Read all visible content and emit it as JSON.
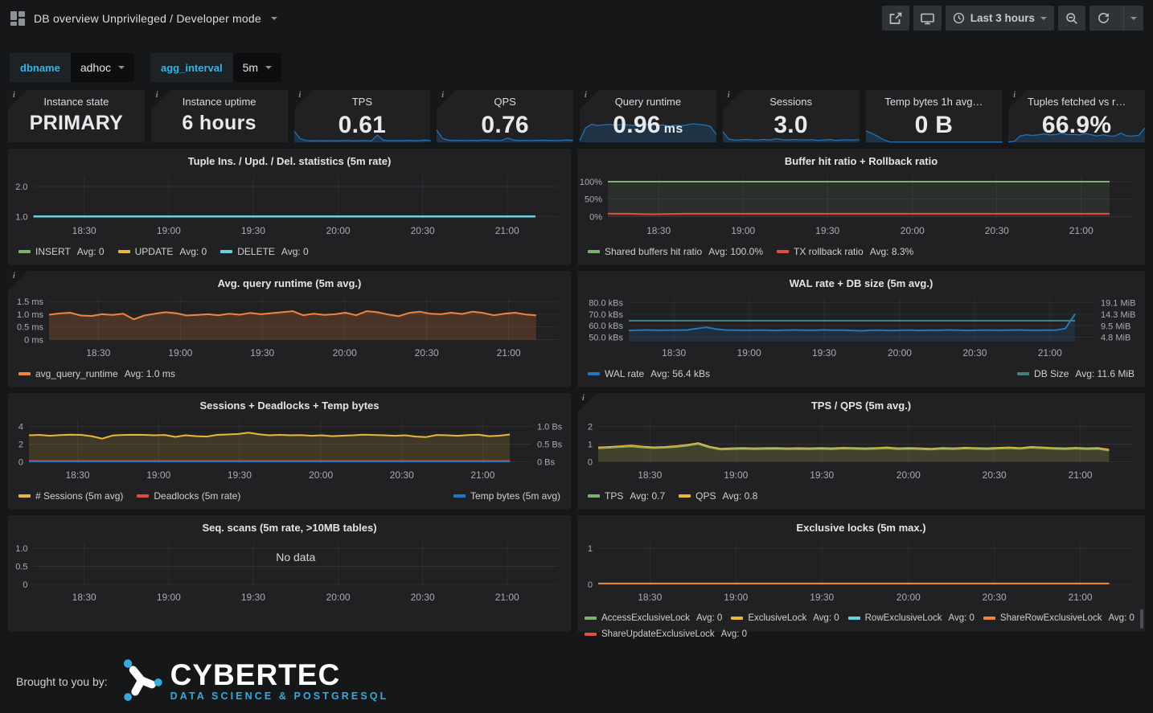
{
  "navbar": {
    "title": "DB overview Unprivileged / Developer mode",
    "time_range": "Last 3 hours"
  },
  "variables": [
    {
      "label": "dbname",
      "value": "adhoc"
    },
    {
      "label": "agg_interval",
      "value": "5m"
    }
  ],
  "stats": [
    {
      "title": "Instance state",
      "value": "PRIMARY",
      "info": true
    },
    {
      "title": "Instance uptime",
      "value": "6 hours",
      "info": true
    },
    {
      "title": "TPS",
      "value": "0.61",
      "info": true,
      "spark_h": 22,
      "spark": [
        0.62,
        0.2,
        0.1,
        0.08,
        0.09,
        0.08,
        0.09,
        0.08,
        0.09,
        0.1,
        0.08,
        0.09,
        0.1,
        0.08,
        0.4,
        0.12,
        0.09,
        0.1,
        0.09,
        0.11,
        0.09,
        0.1,
        0.12,
        0.1
      ]
    },
    {
      "title": "QPS",
      "value": "0.76",
      "info": true,
      "spark_h": 22,
      "spark": [
        0.7,
        0.22,
        0.12,
        0.1,
        0.11,
        0.1,
        0.11,
        0.1,
        0.13,
        0.11,
        0.1,
        0.11,
        0.24,
        0.12,
        0.1,
        0.11,
        0.1,
        0.11,
        0.12,
        0.11,
        0.1,
        0.11,
        0.13,
        0.11
      ]
    },
    {
      "title": "Query runtime",
      "value": "0.96",
      "unit": "ms",
      "info": true,
      "spark_h": 36,
      "spark": [
        0.06,
        0.5,
        0.62,
        0.58,
        0.6,
        0.62,
        0.59,
        0.61,
        0.6,
        0.58,
        0.61,
        0.63,
        0.6,
        0.58,
        0.6,
        0.56,
        0.59,
        0.57,
        0.6,
        0.64,
        0.62,
        0.6,
        0.55,
        0.28
      ]
    },
    {
      "title": "Sessions",
      "value": "3.0",
      "info": true,
      "spark_h": 22,
      "spark": [
        0.6,
        0.18,
        0.12,
        0.14,
        0.16,
        0.13,
        0.14,
        0.16,
        0.13,
        0.2,
        0.15,
        0.13,
        0.16,
        0.14,
        0.13,
        0.15,
        0.11,
        0.13,
        0.16,
        0.11,
        0.13,
        0.14,
        0.13,
        0.15
      ]
    },
    {
      "title": "Temp bytes 1h avg…",
      "value": "0 B",
      "info": false,
      "spark_h": 26,
      "spark": [
        0.55,
        0.42,
        0.28,
        0.12,
        0.02,
        0.01,
        0.01,
        0.01,
        0.01,
        0.01,
        0.01,
        0.01,
        0.01,
        0.01,
        0.01,
        0.01,
        0.01,
        0.01,
        0.01,
        0.01,
        0.01,
        0.01,
        0.01,
        0.01
      ]
    },
    {
      "title": "Tuples fetched vs r…",
      "value": "66.9%",
      "info": true,
      "spark_h": 26,
      "spark": [
        0.02,
        0.04,
        0.3,
        0.36,
        0.33,
        0.35,
        0.4,
        0.35,
        0.37,
        0.44,
        0.36,
        0.38,
        0.35,
        0.42,
        0.36,
        0.3,
        0.36,
        0.3,
        0.3,
        0.44,
        0.3,
        0.3,
        0.34,
        0.68
      ]
    }
  ],
  "chart_data": [
    {
      "type": "line",
      "title": "Tuple Ins. / Upd. / Del. statistics (5m rate)",
      "info": false,
      "x_ticks": [
        "18:30",
        "19:00",
        "19:30",
        "20:00",
        "20:30",
        "21:00"
      ],
      "ylim": [
        0.9,
        2.35
      ],
      "y_ticks": [
        {
          "label": "2.0",
          "v": 2.0
        },
        {
          "label": "1.0",
          "v": 1.0
        }
      ],
      "series": [
        {
          "name": "INSERT",
          "avg": "Avg: 0",
          "color": "#7EB26D",
          "width": 2,
          "fill": 0,
          "values": [
            1,
            1
          ]
        },
        {
          "name": "UPDATE",
          "avg": "Avg: 0",
          "color": "#EAB839",
          "width": 2,
          "fill": 0,
          "values": [
            1,
            1
          ]
        },
        {
          "name": "DELETE",
          "avg": "Avg: 0",
          "color": "#6ED0E0",
          "width": 2.5,
          "fill": 0,
          "values": [
            1,
            1
          ]
        }
      ]
    },
    {
      "type": "line",
      "title": "Buffer hit ratio + Rollback ratio",
      "info": false,
      "x_ticks": [
        "18:30",
        "19:00",
        "19:30",
        "20:00",
        "20:30",
        "21:00"
      ],
      "ylim": [
        -8,
        116
      ],
      "y_ticks": [
        {
          "label": "100%",
          "v": 100
        },
        {
          "label": "50%",
          "v": 50
        },
        {
          "label": "0%",
          "v": 0
        }
      ],
      "series": [
        {
          "name": "Shared buffers hit ratio",
          "avg": "Avg: 100.0%",
          "color": "#7EB26D",
          "width": 2,
          "fill": 0.1,
          "values": [
            100,
            100
          ]
        },
        {
          "name": "TX rollback ratio",
          "avg": "Avg: 8.3%",
          "color": "#E24D42",
          "width": 2,
          "fill": 0.05,
          "values": [
            8.5,
            8.4,
            8.2,
            7.6,
            7.0,
            7.3,
            7.9,
            8.3,
            8.4,
            8.3,
            8.3,
            8.4,
            8.3,
            8.2,
            8.3,
            8.4,
            8.3,
            8.3,
            8.2,
            8.3,
            8.4,
            8.3,
            8.3,
            8.4,
            8.3,
            8.2,
            8.3,
            8.3,
            8.4,
            8.3,
            8.2,
            8.3,
            8.4,
            8.3,
            8.3,
            8.2,
            8.3,
            8.4,
            8.3,
            8.3,
            8.2,
            8.3,
            8.3,
            8.4,
            8.3,
            8.2,
            8.3
          ]
        }
      ]
    },
    {
      "type": "line",
      "title": "Avg. query runtime (5m avg.)",
      "info": true,
      "x_ticks": [
        "18:30",
        "19:00",
        "19:30",
        "20:00",
        "20:30",
        "21:00"
      ],
      "ylim": [
        -0.08,
        1.63
      ],
      "y_ticks": [
        {
          "label": "1.5 ms",
          "v": 1.5
        },
        {
          "label": "1.0 ms",
          "v": 1.0
        },
        {
          "label": "0.5 ms",
          "v": 0.5
        },
        {
          "label": "0 ms",
          "v": 0
        }
      ],
      "series": [
        {
          "name": "avg_query_runtime",
          "avg": "Avg: 1.0 ms",
          "color": "#EF843C",
          "width": 2,
          "fill": 0.2,
          "values": [
            0.98,
            1.03,
            1.06,
            0.95,
            0.93,
            1.0,
            0.97,
            1.02,
            0.8,
            0.95,
            1.02,
            1.08,
            1.04,
            0.95,
            0.97,
            1.0,
            0.96,
            1.02,
            0.98,
            1.05,
            1.0,
            1.04,
            1.08,
            1.12,
            0.96,
            1.02,
            0.97,
            1.0,
            1.06,
            0.96,
            1.12,
            1.08,
            0.99,
            0.92,
            1.05,
            1.1,
            1.02,
            1.0,
            1.06,
            1.01,
            1.1,
            1.05,
            0.96,
            1.02,
            1.06,
            0.99,
            0.96
          ]
        }
      ]
    },
    {
      "type": "line",
      "title": "WAL rate + DB size (5m avg.)",
      "info": false,
      "x_ticks": [
        "18:30",
        "19:00",
        "19:30",
        "20:00",
        "20:30",
        "21:00"
      ],
      "ylim": [
        46,
        84
      ],
      "y_ticks": [
        {
          "label": "80.0 kBs",
          "v": 80
        },
        {
          "label": "70.0 kBs",
          "v": 70
        },
        {
          "label": "60.0 kBs",
          "v": 60
        },
        {
          "label": "50.0 kBs",
          "v": 50
        }
      ],
      "right_ylim": [
        2.89,
        21.01
      ],
      "right_y_ticks": [
        {
          "label": "19.1 MiB",
          "v": 19.1
        },
        {
          "label": "14.3 MiB",
          "v": 14.3
        },
        {
          "label": "9.5 MiB",
          "v": 9.5
        },
        {
          "label": "4.8 MiB",
          "v": 4.8
        }
      ],
      "series": [
        {
          "name": "WAL rate",
          "avg": "Avg: 56.4 kBs",
          "color": "#1F78C1",
          "width": 2,
          "fill": 0.15,
          "values": [
            55.8,
            56,
            56.2,
            55.9,
            56,
            56.1,
            56.2,
            57.4,
            58.6,
            57,
            56.2,
            56,
            55.9,
            56,
            56.1,
            55.8,
            56,
            56.2,
            56,
            55.9,
            56.3,
            56,
            56.1,
            55.8,
            55.5,
            55.9,
            56,
            55.7,
            55.9,
            56.1,
            55.8,
            56,
            55.9,
            56.2,
            56,
            55.8,
            56,
            56.1,
            55.9,
            56,
            56.2,
            56,
            55.9,
            56,
            56.1,
            57.5,
            70.3
          ]
        },
        {
          "name": "DB Size",
          "avg": "Avg: 11.6 MiB",
          "color": "#447E7D",
          "width": 2,
          "fill": 0,
          "axis": "right",
          "legend": "right",
          "values": [
            11.6,
            11.6
          ]
        }
      ]
    },
    {
      "type": "line",
      "title": "Sessions + Deadlocks + Temp bytes",
      "info": false,
      "x_ticks": [
        "18:30",
        "19:00",
        "19:30",
        "20:00",
        "20:30",
        "21:00"
      ],
      "ylim": [
        -0.25,
        4.7
      ],
      "y_ticks": [
        {
          "label": "4",
          "v": 4
        },
        {
          "label": "2",
          "v": 2
        },
        {
          "label": "0",
          "v": 0
        }
      ],
      "right_ylim": [
        -0.0625,
        1.175
      ],
      "right_y_ticks": [
        {
          "label": "1.0 Bs",
          "v": 1.0
        },
        {
          "label": "0.5 Bs",
          "v": 0.5
        },
        {
          "label": "0 Bs",
          "v": 0
        }
      ],
      "series": [
        {
          "name": "# Sessions (5m avg)",
          "color": "#EAB839",
          "width": 2,
          "fill": 0.16,
          "values": [
            3.0,
            3.05,
            2.95,
            3.02,
            3.08,
            3.05,
            2.9,
            2.62,
            2.98,
            3.04,
            3.06,
            3.05,
            3.0,
            3.04,
            2.82,
            3.0,
            2.9,
            2.86,
            3.05,
            3.1,
            3.15,
            3.3,
            3.12,
            3.0,
            3.05,
            3.0,
            3.03,
            2.95,
            3.0,
            2.9,
            2.96,
            3.0,
            3.08,
            3.04,
            3.0,
            2.95,
            3.0,
            2.86,
            2.8,
            3.04,
            3.0,
            2.95,
            3.03,
            3.08,
            2.9,
            2.96,
            3.1
          ]
        },
        {
          "name": "Deadlocks (5m rate)",
          "color": "#E24D42",
          "width": 2.5,
          "fill": 0,
          "values": [
            0.04,
            0.04
          ]
        },
        {
          "name": "Temp bytes (5m avg)",
          "color": "#1F78C1",
          "width": 2,
          "fill": 0,
          "axis": "right",
          "legend": "right",
          "values": [
            0.004,
            0.004
          ]
        }
      ]
    },
    {
      "type": "line",
      "title": "TPS / QPS (5m avg.)",
      "info": true,
      "x_ticks": [
        "18:30",
        "19:00",
        "19:30",
        "20:00",
        "20:30",
        "21:00"
      ],
      "ylim": [
        -0.12,
        2.35
      ],
      "y_ticks": [
        {
          "label": "2",
          "v": 2
        },
        {
          "label": "1",
          "v": 1
        },
        {
          "label": "0",
          "v": 0
        }
      ],
      "series": [
        {
          "name": "TPS",
          "avg": "Avg: 0.7",
          "color": "#7EB26D",
          "width": 1.5,
          "fill": 0.12,
          "values": [
            0.75,
            0.78,
            0.82,
            0.86,
            0.8,
            0.76,
            0.78,
            0.83,
            0.9,
            1.0,
            0.8,
            0.68,
            0.7,
            0.72,
            0.7,
            0.71,
            0.72,
            0.7,
            0.71,
            0.7,
            0.72,
            0.7,
            0.73,
            0.72,
            0.7,
            0.72,
            0.75,
            0.7,
            0.72,
            0.7,
            0.68,
            0.72,
            0.7,
            0.74,
            0.72,
            0.7,
            0.73,
            0.75,
            0.72,
            0.78,
            0.75,
            0.72,
            0.7,
            0.73,
            0.7,
            0.72,
            0.62
          ]
        },
        {
          "name": "QPS",
          "avg": "Avg: 0.8",
          "color": "#EAB839",
          "width": 1.5,
          "fill": 0.12,
          "values": [
            0.82,
            0.85,
            0.89,
            0.93,
            0.87,
            0.83,
            0.85,
            0.9,
            0.97,
            1.07,
            0.87,
            0.75,
            0.77,
            0.79,
            0.77,
            0.78,
            0.79,
            0.77,
            0.78,
            0.77,
            0.79,
            0.77,
            0.8,
            0.79,
            0.77,
            0.79,
            0.82,
            0.77,
            0.79,
            0.77,
            0.75,
            0.79,
            0.77,
            0.81,
            0.79,
            0.77,
            0.8,
            0.82,
            0.79,
            0.85,
            0.82,
            0.79,
            0.77,
            0.8,
            0.77,
            0.79,
            0.7
          ]
        }
      ]
    },
    {
      "type": "line",
      "title": "Seq. scans (5m rate, >10MB tables)",
      "info": false,
      "no_data": "No data",
      "x_ticks": [
        "18:30",
        "19:00",
        "19:30",
        "20:00",
        "20:30",
        "21:00"
      ],
      "ylim": [
        -0.05,
        1.16
      ],
      "y_ticks": [
        {
          "label": "1.0",
          "v": 1.0
        },
        {
          "label": "0.5",
          "v": 0.5
        },
        {
          "label": "0",
          "v": 0
        }
      ],
      "series": []
    },
    {
      "type": "line",
      "title": "Exclusive locks (5m max.)",
      "info": false,
      "legend_tight": true,
      "scrollbar": true,
      "x_ticks": [
        "18:30",
        "19:00",
        "19:30",
        "20:00",
        "20:30",
        "21:00"
      ],
      "ylim": [
        -0.05,
        1.16
      ],
      "y_ticks": [
        {
          "label": "1",
          "v": 1
        },
        {
          "label": "0",
          "v": 0
        }
      ],
      "series": [
        {
          "name": "AccessExclusiveLock",
          "avg": "Avg: 0",
          "color": "#7EB26D",
          "width": 1.5,
          "fill": 0,
          "values": [
            0.02,
            0.02
          ]
        },
        {
          "name": "ExclusiveLock",
          "avg": "Avg: 0",
          "color": "#EAB839",
          "width": 1.5,
          "fill": 0,
          "values": [
            0.02,
            0.02
          ]
        },
        {
          "name": "RowExclusiveLock",
          "avg": "Avg: 0",
          "color": "#6ED0E0",
          "width": 1.5,
          "fill": 0,
          "values": [
            0.02,
            0.02
          ]
        },
        {
          "name": "ShareRowExclusiveLock",
          "avg": "Avg: 0",
          "color": "#EF843C",
          "width": 2,
          "fill": 0,
          "values": [
            0.02,
            0.02
          ]
        },
        {
          "name": "ShareUpdateExclusiveLock",
          "avg": "Avg: 0",
          "color": "#E24D42",
          "width": 1.5,
          "fill": 0,
          "hidden": true,
          "values": [
            0.02,
            0.02
          ]
        }
      ]
    }
  ],
  "footer": {
    "label": "Brought to you by:",
    "logo_text": "CYBERTEC",
    "logo_subtext": "DATA SCIENCE & POSTGRESQL"
  },
  "misc": {
    "info_glyph": "i"
  },
  "colors": {
    "page_bg": "#161719",
    "panel_bg": "#212124",
    "accent": "#33B5E5",
    "spark_line": "#1F78C1",
    "green": "#7EB26D",
    "yellow": "#EAB839",
    "cyan": "#6ED0E0",
    "orange": "#EF843C",
    "red": "#E24D42",
    "blue": "#1F78C1",
    "teal": "#447E7D",
    "logo_blue": "#36A9E1"
  }
}
